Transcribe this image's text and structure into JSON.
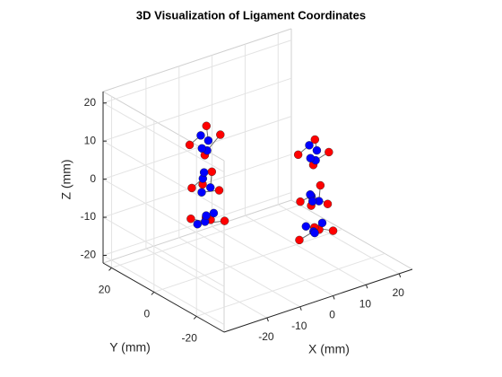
{
  "chart_data": {
    "type": "scatter3",
    "title": "3D Visualization of Ligament Coordinates",
    "xlabel": "X (mm)",
    "ylabel": "Y (mm)",
    "zlabel": "Z (mm)",
    "xlim": [
      -33,
      24
    ],
    "ylim": [
      -33,
      24
    ],
    "zlim": [
      -22,
      23
    ],
    "xticks": [
      -20,
      -10,
      0,
      10,
      20
    ],
    "yticks": [
      -20,
      0,
      20
    ],
    "zticks": [
      -20,
      -10,
      0,
      10,
      20
    ],
    "grid": true,
    "line_color": "#6e6e6e",
    "series": [
      {
        "color": "#ff0000",
        "x": [
          -19,
          -12,
          -11,
          -17,
          -19,
          -11,
          -12,
          -17,
          -18,
          -12,
          -11,
          -16,
          1,
          8,
          9,
          3,
          1,
          9,
          8,
          3,
          2,
          8,
          9,
          4
        ],
        "y": [
          5,
          8,
          3,
          1,
          4,
          7,
          2,
          2,
          6,
          6,
          1,
          2,
          -15,
          -12,
          -17,
          -19,
          -16,
          -13,
          -18,
          -18,
          -14,
          -14,
          -19,
          -18
        ],
        "z": [
          11,
          13,
          12,
          9,
          0,
          1,
          -2,
          1,
          -9,
          -11,
          -10,
          -8,
          9,
          10,
          8,
          7,
          -3,
          -2,
          -5,
          -4,
          -14,
          -13,
          -12,
          -10
        ]
      },
      {
        "color": "#0000ff",
        "x": [
          -15,
          -14,
          -15,
          -14,
          -15,
          -14,
          -16,
          -14,
          -15,
          -14,
          -16,
          -13,
          5,
          6,
          5,
          6,
          5,
          6,
          4,
          6,
          5,
          6,
          4,
          7
        ],
        "y": [
          6,
          4,
          3,
          7,
          5,
          3,
          4,
          6,
          4,
          5,
          6,
          3,
          -14,
          -16,
          -17,
          -13,
          -15,
          -17,
          -16,
          -14,
          -16,
          -15,
          -14,
          -17
        ],
        "z": [
          12,
          11,
          9,
          8,
          1,
          -1,
          -2,
          2,
          -10,
          -9,
          -11,
          -8,
          10,
          9,
          7,
          6,
          -3,
          -4,
          -2,
          -5,
          -12,
          -13,
          -11,
          -10
        ]
      }
    ]
  }
}
